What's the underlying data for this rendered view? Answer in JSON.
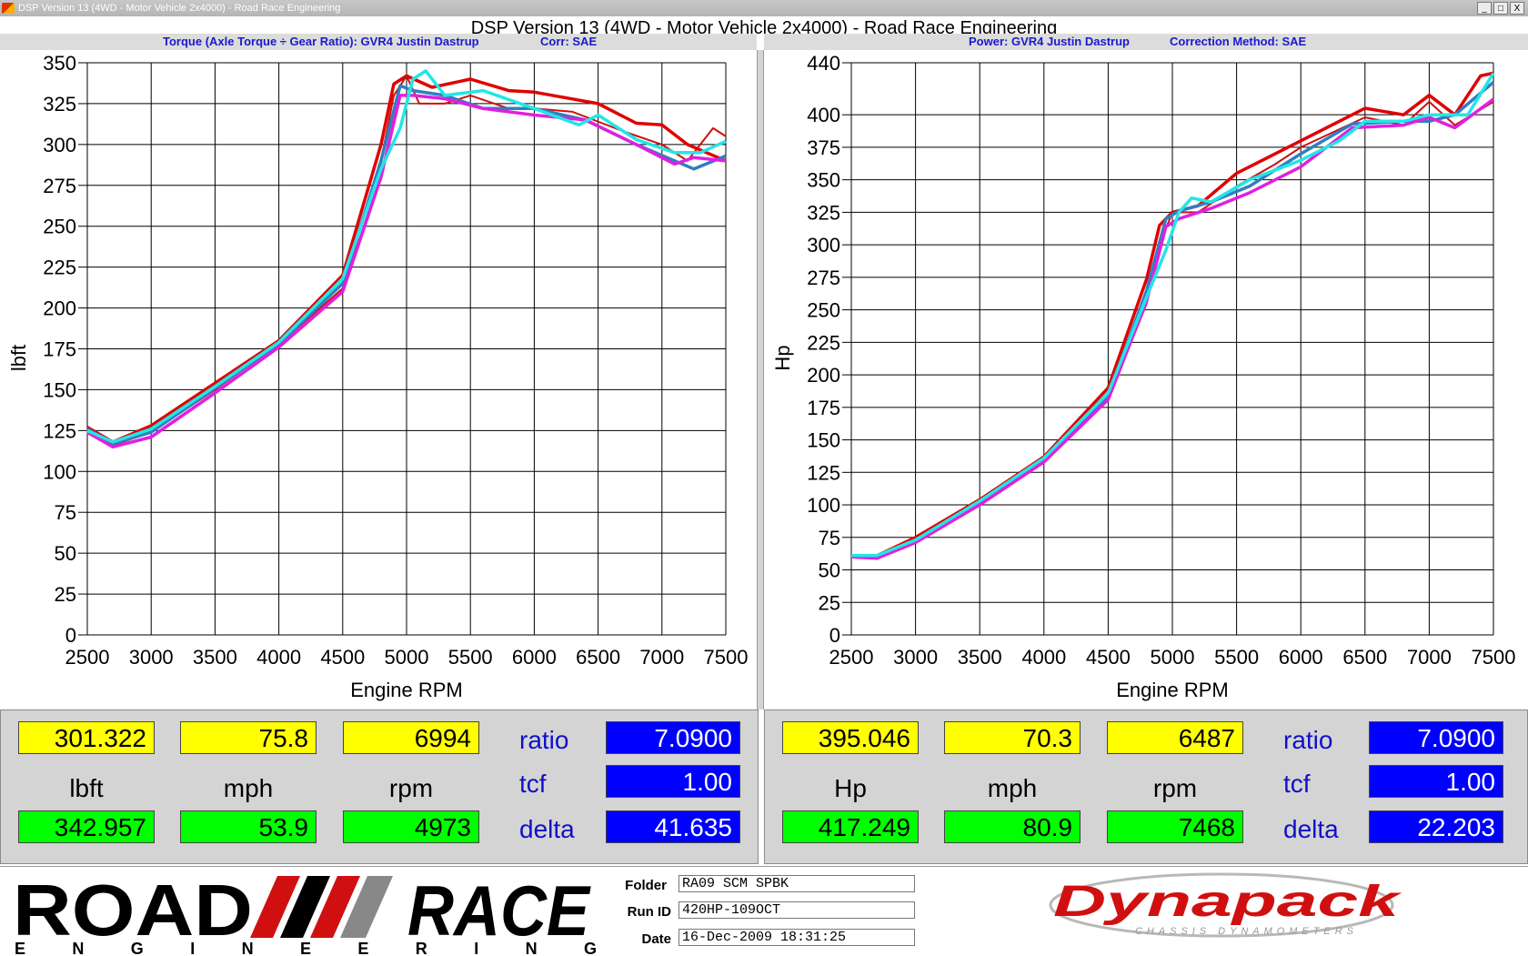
{
  "window": {
    "title": "DSP Version 13 (4WD - Motor Vehicle 2x4000) - Road Race Engineering",
    "app_title": "DSP Version 13 (4WD - Motor Vehicle 2x4000) - Road Race Engineering",
    "buttons": [
      "_",
      "□",
      "X"
    ]
  },
  "header": {
    "left_series": "Torque (Axle Torque ÷ Gear Ratio): GVR4 Justin Dastrup",
    "left_corr": "Corr: SAE",
    "right_series": "Power: GVR4 Justin Dastrup",
    "right_corr": "Correction Method: SAE"
  },
  "colors": {
    "red": "#e00000",
    "darkred": "#cc1010",
    "steelblue": "#2f7fc0",
    "magenta": "#e020e0",
    "cyan": "#22e6e6",
    "grid": "#000000"
  },
  "chart_data": [
    {
      "type": "line",
      "title": "",
      "xlabel": "Engine RPM",
      "ylabel": "lbft",
      "xlim": [
        2500,
        7500
      ],
      "ylim": [
        0,
        350
      ],
      "xticks": [
        2500,
        3000,
        3500,
        4000,
        4500,
        5000,
        5500,
        6000,
        6500,
        7000,
        7500
      ],
      "yticks": [
        0,
        25,
        50,
        75,
        100,
        125,
        150,
        175,
        200,
        225,
        250,
        275,
        300,
        325,
        350
      ],
      "grid": true,
      "series": [
        {
          "color": "#e00000",
          "x": [
            2500,
            2700,
            3000,
            3500,
            4000,
            4500,
            4800,
            4900,
            5000,
            5200,
            5500,
            5800,
            6000,
            6500,
            6800,
            7000,
            7200,
            7500
          ],
          "y": [
            127,
            118,
            128,
            154,
            180,
            220,
            300,
            337,
            342,
            335,
            340,
            333,
            332,
            325,
            313,
            312,
            300,
            290
          ]
        },
        {
          "color": "#cc1010",
          "x": [
            2500,
            2700,
            3000,
            3500,
            4000,
            4500,
            4800,
            4900,
            5000,
            5100,
            5300,
            5500,
            5800,
            6000,
            6300,
            6700,
            7000,
            7200,
            7400,
            7500
          ],
          "y": [
            125,
            116,
            124,
            150,
            178,
            212,
            290,
            330,
            342,
            325,
            325,
            330,
            322,
            322,
            320,
            308,
            300,
            290,
            310,
            305
          ]
        },
        {
          "color": "#2f7fc0",
          "x": [
            2500,
            2700,
            3000,
            3500,
            4000,
            4500,
            4800,
            4950,
            5050,
            5300,
            5600,
            6000,
            6400,
            6800,
            7100,
            7250,
            7500
          ],
          "y": [
            126,
            117,
            124,
            151,
            178,
            215,
            290,
            336,
            333,
            330,
            322,
            322,
            315,
            300,
            290,
            285,
            293
          ]
        },
        {
          "color": "#e020e0",
          "x": [
            2500,
            2700,
            3000,
            3500,
            4000,
            4500,
            4800,
            4950,
            5050,
            5300,
            5600,
            6000,
            6400,
            6800,
            7100,
            7250,
            7500
          ],
          "y": [
            124,
            115,
            121,
            148,
            176,
            210,
            280,
            330,
            330,
            328,
            322,
            318,
            315,
            300,
            288,
            292,
            290
          ]
        },
        {
          "color": "#22e6e6",
          "x": [
            2500,
            2700,
            3000,
            3500,
            4000,
            4500,
            4800,
            4950,
            5050,
            5150,
            5300,
            5600,
            6000,
            6350,
            6500,
            6800,
            7100,
            7300,
            7500
          ],
          "y": [
            125,
            118,
            126,
            152,
            179,
            218,
            285,
            310,
            340,
            345,
            330,
            333,
            322,
            312,
            318,
            303,
            295,
            295,
            302
          ]
        }
      ]
    },
    {
      "type": "line",
      "title": "",
      "xlabel": "Engine RPM",
      "ylabel": "Hp",
      "xlim": [
        2500,
        7500
      ],
      "ylim": [
        0,
        440
      ],
      "xticks": [
        2500,
        3000,
        3500,
        4000,
        4500,
        5000,
        5500,
        6000,
        6500,
        7000,
        7500
      ],
      "yticks": [
        0,
        25,
        50,
        75,
        100,
        125,
        150,
        175,
        200,
        225,
        250,
        275,
        300,
        325,
        350,
        375,
        400,
        440
      ],
      "grid": true,
      "series": [
        {
          "color": "#e00000",
          "x": [
            2500,
            2700,
            3000,
            3500,
            4000,
            4500,
            4800,
            4900,
            5000,
            5200,
            5500,
            5800,
            6000,
            6500,
            6800,
            7000,
            7200,
            7400,
            7500
          ],
          "y": [
            61,
            61,
            75,
            104,
            137,
            190,
            274,
            315,
            325,
            330,
            355,
            370,
            380,
            405,
            400,
            415,
            400,
            430,
            432
          ]
        },
        {
          "color": "#cc1010",
          "x": [
            2500,
            2700,
            3000,
            3500,
            4000,
            4500,
            4800,
            4900,
            5000,
            5200,
            5500,
            5800,
            6000,
            6500,
            6800,
            7000,
            7200,
            7500
          ],
          "y": [
            60,
            60,
            72,
            101,
            135,
            181,
            255,
            300,
            325,
            325,
            345,
            362,
            375,
            398,
            392,
            410,
            392,
            410
          ]
        },
        {
          "color": "#2f7fc0",
          "x": [
            2500,
            2700,
            3000,
            3500,
            4000,
            4500,
            4800,
            4950,
            5050,
            5300,
            5600,
            6000,
            6400,
            6800,
            7000,
            7200,
            7500
          ],
          "y": [
            61,
            60,
            73,
            102,
            135,
            184,
            265,
            320,
            326,
            333,
            345,
            370,
            393,
            395,
            395,
            400,
            425
          ]
        },
        {
          "color": "#e020e0",
          "x": [
            2500,
            2700,
            3000,
            3500,
            4000,
            4500,
            4800,
            4950,
            5050,
            5300,
            5600,
            6000,
            6400,
            6800,
            7000,
            7200,
            7500
          ],
          "y": [
            60,
            59,
            71,
            100,
            133,
            181,
            257,
            314,
            320,
            328,
            340,
            360,
            390,
            392,
            398,
            390,
            412
          ]
        },
        {
          "color": "#22e6e6",
          "x": [
            2500,
            2700,
            3000,
            3500,
            4000,
            4500,
            4800,
            4950,
            5050,
            5150,
            5300,
            5600,
            6000,
            6300,
            6500,
            6800,
            7000,
            7300,
            7500
          ],
          "y": [
            61,
            61,
            73,
            103,
            136,
            186,
            260,
            296,
            325,
            336,
            333,
            350,
            365,
            380,
            395,
            395,
            400,
            400,
            432
          ]
        }
      ]
    }
  ],
  "readouts": {
    "left": {
      "yellow": [
        "301.322",
        "75.8",
        "6994"
      ],
      "units": [
        "lbft",
        "mph",
        "rpm"
      ],
      "green": [
        "342.957",
        "53.9",
        "4973"
      ],
      "params": [
        {
          "label": "ratio",
          "value": "7.0900"
        },
        {
          "label": "tcf",
          "value": "1.00"
        },
        {
          "label": "delta",
          "value": "41.635"
        }
      ]
    },
    "right": {
      "yellow": [
        "395.046",
        "70.3",
        "6487"
      ],
      "units": [
        "Hp",
        "mph",
        "rpm"
      ],
      "green": [
        "417.249",
        "80.9",
        "7468"
      ],
      "params": [
        {
          "label": "ratio",
          "value": "7.0900"
        },
        {
          "label": "tcf",
          "value": "1.00"
        },
        {
          "label": "delta",
          "value": "22.203"
        }
      ]
    }
  },
  "footer": {
    "logo_left_top": "ROAD",
    "logo_left_right": "RACE",
    "logo_left_bottom": "ENGINEERING",
    "folder_label": "Folder",
    "folder_value": "RA09 SCM SPBK",
    "runid_label": "Run ID",
    "runid_value": "420HP-109OCT",
    "date_label": "Date",
    "date_value": "16-Dec-2009 18:31:25",
    "logo_right": "Dynapack",
    "logo_right_sub": "CHASSIS DYNAMOMETERS"
  }
}
